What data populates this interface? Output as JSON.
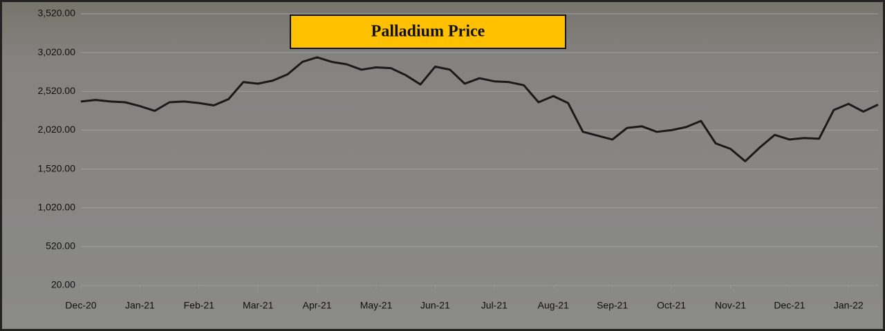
{
  "chart_data": {
    "type": "line",
    "title": "Palladium Price",
    "categories": [
      "Dec-20",
      null,
      null,
      null,
      "Jan-21",
      null,
      null,
      null,
      "Feb-21",
      null,
      null,
      null,
      "Mar-21",
      null,
      null,
      null,
      "Apr-21",
      null,
      null,
      null,
      "May-21",
      null,
      null,
      null,
      "Jun-21",
      null,
      null,
      null,
      "Jul-21",
      null,
      null,
      null,
      "Aug-21",
      null,
      null,
      null,
      "Sep-21",
      null,
      null,
      null,
      "Oct-21",
      null,
      null,
      null,
      "Nov-21",
      null,
      null,
      null,
      "Dec-21",
      null,
      null,
      null,
      "Jan-22",
      null,
      null
    ],
    "series": [
      {
        "color": "#1a1a1a",
        "values": [
          2390,
          2410,
          2390,
          2380,
          2330,
          2270,
          2380,
          2390,
          2370,
          2340,
          2420,
          2640,
          2620,
          2660,
          2740,
          2900,
          2960,
          2900,
          2870,
          2800,
          2830,
          2820,
          2730,
          2610,
          2840,
          2800,
          2620,
          2690,
          2650,
          2640,
          2600,
          2380,
          2460,
          2370,
          2000,
          1950,
          1900,
          2050,
          2070,
          2000,
          2020,
          2060,
          2140,
          1850,
          1780,
          1620,
          1800,
          1960,
          1900,
          1920,
          1910,
          2280,
          2360,
          2260,
          2350
        ]
      }
    ],
    "ylim": [
      20,
      3520
    ],
    "yticks": [
      {
        "value": 20,
        "label": "20.00"
      },
      {
        "value": 520,
        "label": "520.00"
      },
      {
        "value": 1020,
        "label": "1,020.00"
      },
      {
        "value": 1520,
        "label": "1,520.00"
      },
      {
        "value": 2020,
        "label": "2,020.00"
      },
      {
        "value": 2520,
        "label": "2,520.00"
      },
      {
        "value": 3020,
        "label": "3,020.00"
      },
      {
        "value": 3520,
        "label": "3,520.00"
      }
    ],
    "grid": true
  }
}
